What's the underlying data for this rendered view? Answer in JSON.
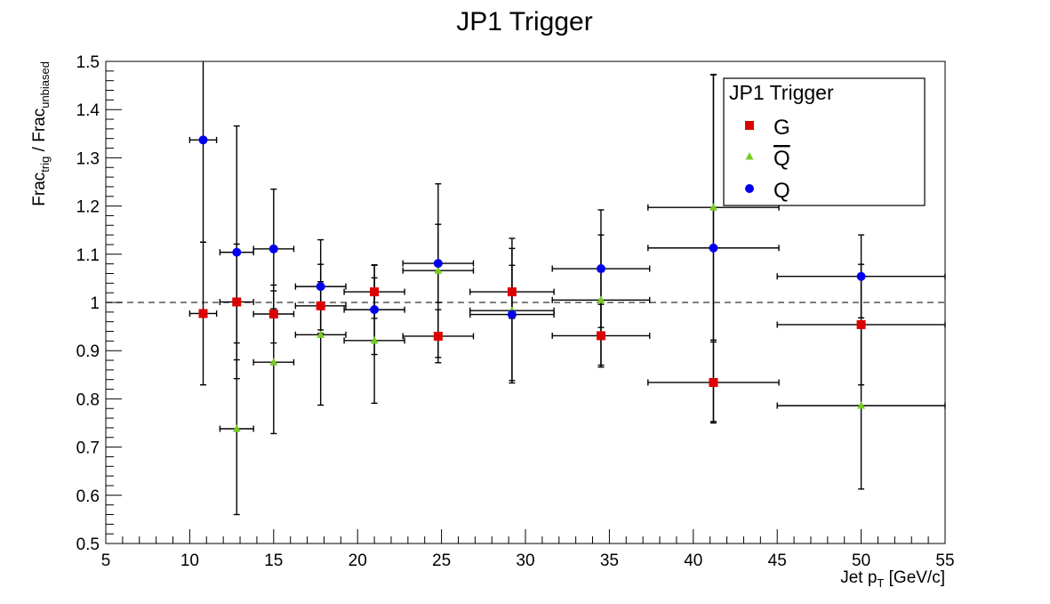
{
  "chart_data": {
    "type": "scatter",
    "title": "JP1 Trigger",
    "xlabel": "Jet p",
    "xlabel_sub": "T",
    "xlabel_unit": " [GeV/c]",
    "ylabel_parts": [
      "Frac",
      "trig",
      " / Frac",
      "unbiased"
    ],
    "xlim": [
      5,
      55
    ],
    "ylim": [
      0.5,
      1.5
    ],
    "x_ticks": [
      5,
      10,
      15,
      20,
      25,
      30,
      35,
      40,
      45,
      50,
      55
    ],
    "y_ticks": [
      0.5,
      0.6,
      0.7,
      0.8,
      0.9,
      1,
      1.1,
      1.2,
      1.3,
      1.4,
      1.5
    ],
    "reference_line": 1.0,
    "legend": {
      "title": "JP1 Trigger",
      "placement": "top-right"
    },
    "series": [
      {
        "name": "G",
        "marker": "square",
        "color": "#dd0000",
        "points": [
          {
            "x": 10.8,
            "y": 0.977,
            "xerr": [
              0.8,
              0.8
            ],
            "yerr": [
              0.148,
              0.148
            ]
          },
          {
            "x": 12.8,
            "y": 1.001,
            "xerr": [
              1.0,
              1.0
            ],
            "yerr": [
              0.12,
              0.12
            ]
          },
          {
            "x": 15.0,
            "y": 0.976,
            "xerr": [
              1.2,
              1.2
            ],
            "yerr": [
              0.06,
              0.06
            ]
          },
          {
            "x": 17.8,
            "y": 0.993,
            "xerr": [
              1.5,
              1.5
            ],
            "yerr": [
              0.05,
              0.05
            ]
          },
          {
            "x": 21.0,
            "y": 1.022,
            "xerr": [
              1.8,
              1.8
            ],
            "yerr": [
              0.055,
              0.055
            ]
          },
          {
            "x": 24.8,
            "y": 0.93,
            "xerr": [
              2.1,
              2.1
            ],
            "yerr": [
              0.055,
              0.055
            ]
          },
          {
            "x": 29.2,
            "y": 1.022,
            "xerr": [
              2.5,
              2.5
            ],
            "yerr": [
              0.055,
              0.055
            ]
          },
          {
            "x": 34.5,
            "y": 0.931,
            "xerr": [
              2.9,
              2.9
            ],
            "yerr": [
              0.065,
              0.065
            ]
          },
          {
            "x": 41.2,
            "y": 0.834,
            "xerr": [
              3.9,
              3.9
            ],
            "yerr": [
              0.084,
              0.084
            ]
          },
          {
            "x": 50.0,
            "y": 0.954,
            "xerr": [
              5.0,
              5.0
            ],
            "yerr": [
              0.125,
              0.125
            ]
          }
        ]
      },
      {
        "name": "Q",
        "name_overline": true,
        "marker": "triangle",
        "color": "#77cc22",
        "points": [
          {
            "x": 12.8,
            "y": 0.738,
            "xerr": [
              1.0,
              1.0
            ],
            "yerr": [
              0.178,
              0.178
            ]
          },
          {
            "x": 15.0,
            "y": 0.876,
            "xerr": [
              1.2,
              1.2
            ],
            "yerr": [
              0.148,
              0.148
            ]
          },
          {
            "x": 17.8,
            "y": 0.933,
            "xerr": [
              1.5,
              1.5
            ],
            "yerr": [
              0.146,
              0.146
            ]
          },
          {
            "x": 21.0,
            "y": 0.921,
            "xerr": [
              1.8,
              1.8
            ],
            "yerr": [
              0.13,
              0.13
            ]
          },
          {
            "x": 24.8,
            "y": 1.066,
            "xerr": [
              2.1,
              2.1
            ],
            "yerr": [
              0.18,
              0.18
            ]
          },
          {
            "x": 29.2,
            "y": 0.983,
            "xerr": [
              2.5,
              2.5
            ],
            "yerr": [
              0.15,
              0.15
            ]
          },
          {
            "x": 34.5,
            "y": 1.005,
            "xerr": [
              2.9,
              2.9
            ],
            "yerr": [
              0.135,
              0.135
            ]
          },
          {
            "x": 41.2,
            "y": 1.197,
            "xerr": [
              3.9,
              3.9
            ],
            "yerr": [
              0.275,
              0.275
            ]
          },
          {
            "x": 50.0,
            "y": 0.786,
            "xerr": [
              5.0,
              5.0
            ],
            "yerr": [
              0.173,
              0.173
            ]
          }
        ]
      },
      {
        "name": "Q",
        "marker": "circle",
        "color": "#0000ee",
        "points": [
          {
            "x": 10.8,
            "y": 1.337,
            "xerr": [
              0.8,
              0.8
            ],
            "yerr": [
              0.212,
              0.212
            ]
          },
          {
            "x": 12.8,
            "y": 1.104,
            "xerr": [
              1.0,
              1.0
            ],
            "yerr": [
              0.262,
              0.262
            ]
          },
          {
            "x": 15.0,
            "y": 1.111,
            "xerr": [
              1.2,
              1.2
            ],
            "yerr": [
              0.124,
              0.124
            ]
          },
          {
            "x": 17.8,
            "y": 1.033,
            "xerr": [
              1.5,
              1.5
            ],
            "yerr": [
              0.097,
              0.097
            ]
          },
          {
            "x": 21.0,
            "y": 0.985,
            "xerr": [
              1.8,
              1.8
            ],
            "yerr": [
              0.093,
              0.093
            ]
          },
          {
            "x": 24.8,
            "y": 1.081,
            "xerr": [
              2.1,
              2.1
            ],
            "yerr": [
              0.081,
              0.081
            ]
          },
          {
            "x": 29.2,
            "y": 0.975,
            "xerr": [
              2.5,
              2.5
            ],
            "yerr": [
              0.137,
              0.137
            ]
          },
          {
            "x": 34.5,
            "y": 1.07,
            "xerr": [
              2.9,
              2.9
            ],
            "yerr": [
              0.122,
              0.122
            ]
          },
          {
            "x": 41.2,
            "y": 1.113,
            "xerr": [
              3.9,
              3.9
            ],
            "yerr": [
              0.36,
              0.36
            ]
          },
          {
            "x": 50.0,
            "y": 1.054,
            "xerr": [
              5.0,
              5.0
            ],
            "yerr": [
              0.086,
              0.086
            ]
          }
        ]
      }
    ]
  }
}
